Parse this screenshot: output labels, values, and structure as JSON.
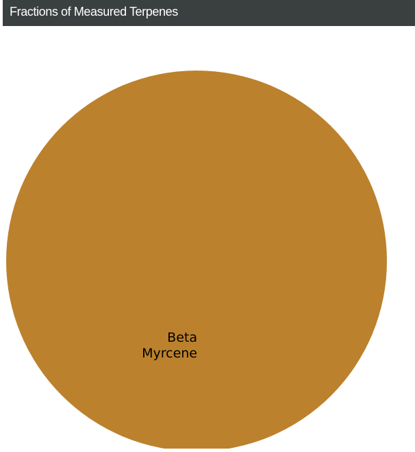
{
  "panel": {
    "title": "Fractions of Measured Terpenes"
  },
  "colors": {
    "header_bg": "#3a3f40",
    "header_text": "#ffffff",
    "slice_beta_myrcene": "#bc812c",
    "label_text": "#000000"
  },
  "chart_data": {
    "type": "pie",
    "title": "Fractions of Measured Terpenes",
    "slices": [
      {
        "label": [
          "Beta",
          "Myrcene"
        ],
        "value": 1.0,
        "color": "#bc812c"
      }
    ]
  }
}
